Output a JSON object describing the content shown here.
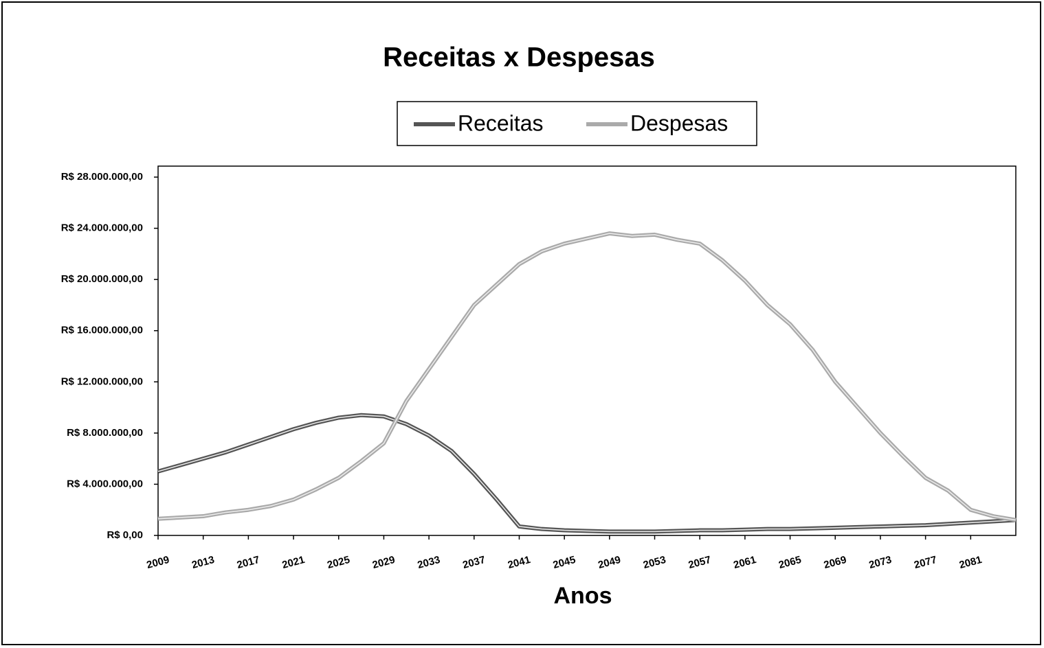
{
  "chart_data": {
    "type": "line",
    "title": "Receitas x Despesas",
    "x_label": "Anos",
    "x": [
      2009,
      2011,
      2013,
      2015,
      2017,
      2019,
      2021,
      2023,
      2025,
      2027,
      2029,
      2031,
      2033,
      2035,
      2037,
      2039,
      2041,
      2043,
      2045,
      2047,
      2049,
      2051,
      2053,
      2055,
      2057,
      2059,
      2061,
      2063,
      2065,
      2067,
      2069,
      2071,
      2073,
      2075,
      2077,
      2079,
      2081,
      2083,
      2085
    ],
    "series": [
      {
        "name": "Receitas",
        "color": "#555555",
        "values": [
          5000000,
          5500000,
          6000000,
          6500000,
          7100000,
          7700000,
          8300000,
          8800000,
          9200000,
          9400000,
          9300000,
          8700000,
          7800000,
          6600000,
          4800000,
          2800000,
          700000,
          500000,
          400000,
          350000,
          300000,
          300000,
          300000,
          350000,
          400000,
          400000,
          450000,
          500000,
          500000,
          550000,
          600000,
          650000,
          700000,
          750000,
          800000,
          900000,
          1000000,
          1100000,
          1200000
        ]
      },
      {
        "name": "Despesas",
        "color": "#aaaaaa",
        "values": [
          1300000,
          1400000,
          1500000,
          1800000,
          2000000,
          2300000,
          2800000,
          3600000,
          4500000,
          5800000,
          7200000,
          10500000,
          13000000,
          15500000,
          18000000,
          19600000,
          21200000,
          22200000,
          22800000,
          23200000,
          23600000,
          23400000,
          23500000,
          23100000,
          22800000,
          21500000,
          19900000,
          18000000,
          16500000,
          14500000,
          12000000,
          10000000,
          8000000,
          6200000,
          4500000,
          3500000,
          2000000,
          1500000,
          1200000
        ]
      }
    ],
    "xlim": [
      2009,
      2085
    ],
    "xticks": [
      2009,
      2013,
      2017,
      2021,
      2025,
      2029,
      2033,
      2037,
      2041,
      2045,
      2049,
      2053,
      2057,
      2061,
      2065,
      2069,
      2073,
      2077,
      2081
    ],
    "ylim": [
      0,
      28000000
    ],
    "yticks": [
      {
        "value": 0,
        "label": "R$ 0,00"
      },
      {
        "value": 4000000,
        "label": "R$ 4.000.000,00"
      },
      {
        "value": 8000000,
        "label": "R$ 8.000.000,00"
      },
      {
        "value": 12000000,
        "label": "R$ 12.000.000,00"
      },
      {
        "value": 16000000,
        "label": "R$ 16.000.000,00"
      },
      {
        "value": 20000000,
        "label": "R$ 20.000.000,00"
      },
      {
        "value": 24000000,
        "label": "R$ 24.000.000,00"
      },
      {
        "value": 28000000,
        "label": "R$ 28.000.000,00"
      }
    ]
  }
}
